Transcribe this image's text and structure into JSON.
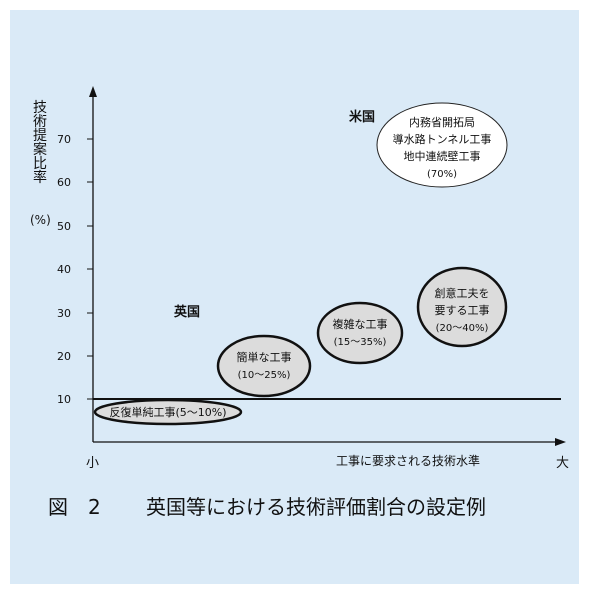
{
  "figure": {
    "caption_number": "図　2",
    "caption_title": "英国等における技術評価割合の設定例"
  },
  "axes": {
    "y_label_chars": [
      "技",
      "術",
      "提",
      "案",
      "比",
      "率"
    ],
    "y_unit": "(%)",
    "y_ticks": [
      "10",
      "20",
      "30",
      "40",
      "50",
      "60",
      "70"
    ],
    "x_small": "小",
    "x_large": "大",
    "x_label": "工事に要求される技術水準"
  },
  "regions": {
    "uk": "英国",
    "us": "米国"
  },
  "bubbles": [
    {
      "lines": [
        "反復単純工事(5～10%)"
      ]
    },
    {
      "lines": [
        "簡単な工事",
        "(10～25%)"
      ]
    },
    {
      "lines": [
        "複雑な工事",
        "(15～35%)"
      ]
    },
    {
      "lines": [
        "創意工夫を",
        "要する工事",
        "(20～40%)"
      ]
    },
    {
      "lines": [
        "内務省開拓局",
        "導水路トンネル工事",
        "地中連続壁工事",
        "(70%)"
      ]
    }
  ],
  "threshold_value": 10
}
